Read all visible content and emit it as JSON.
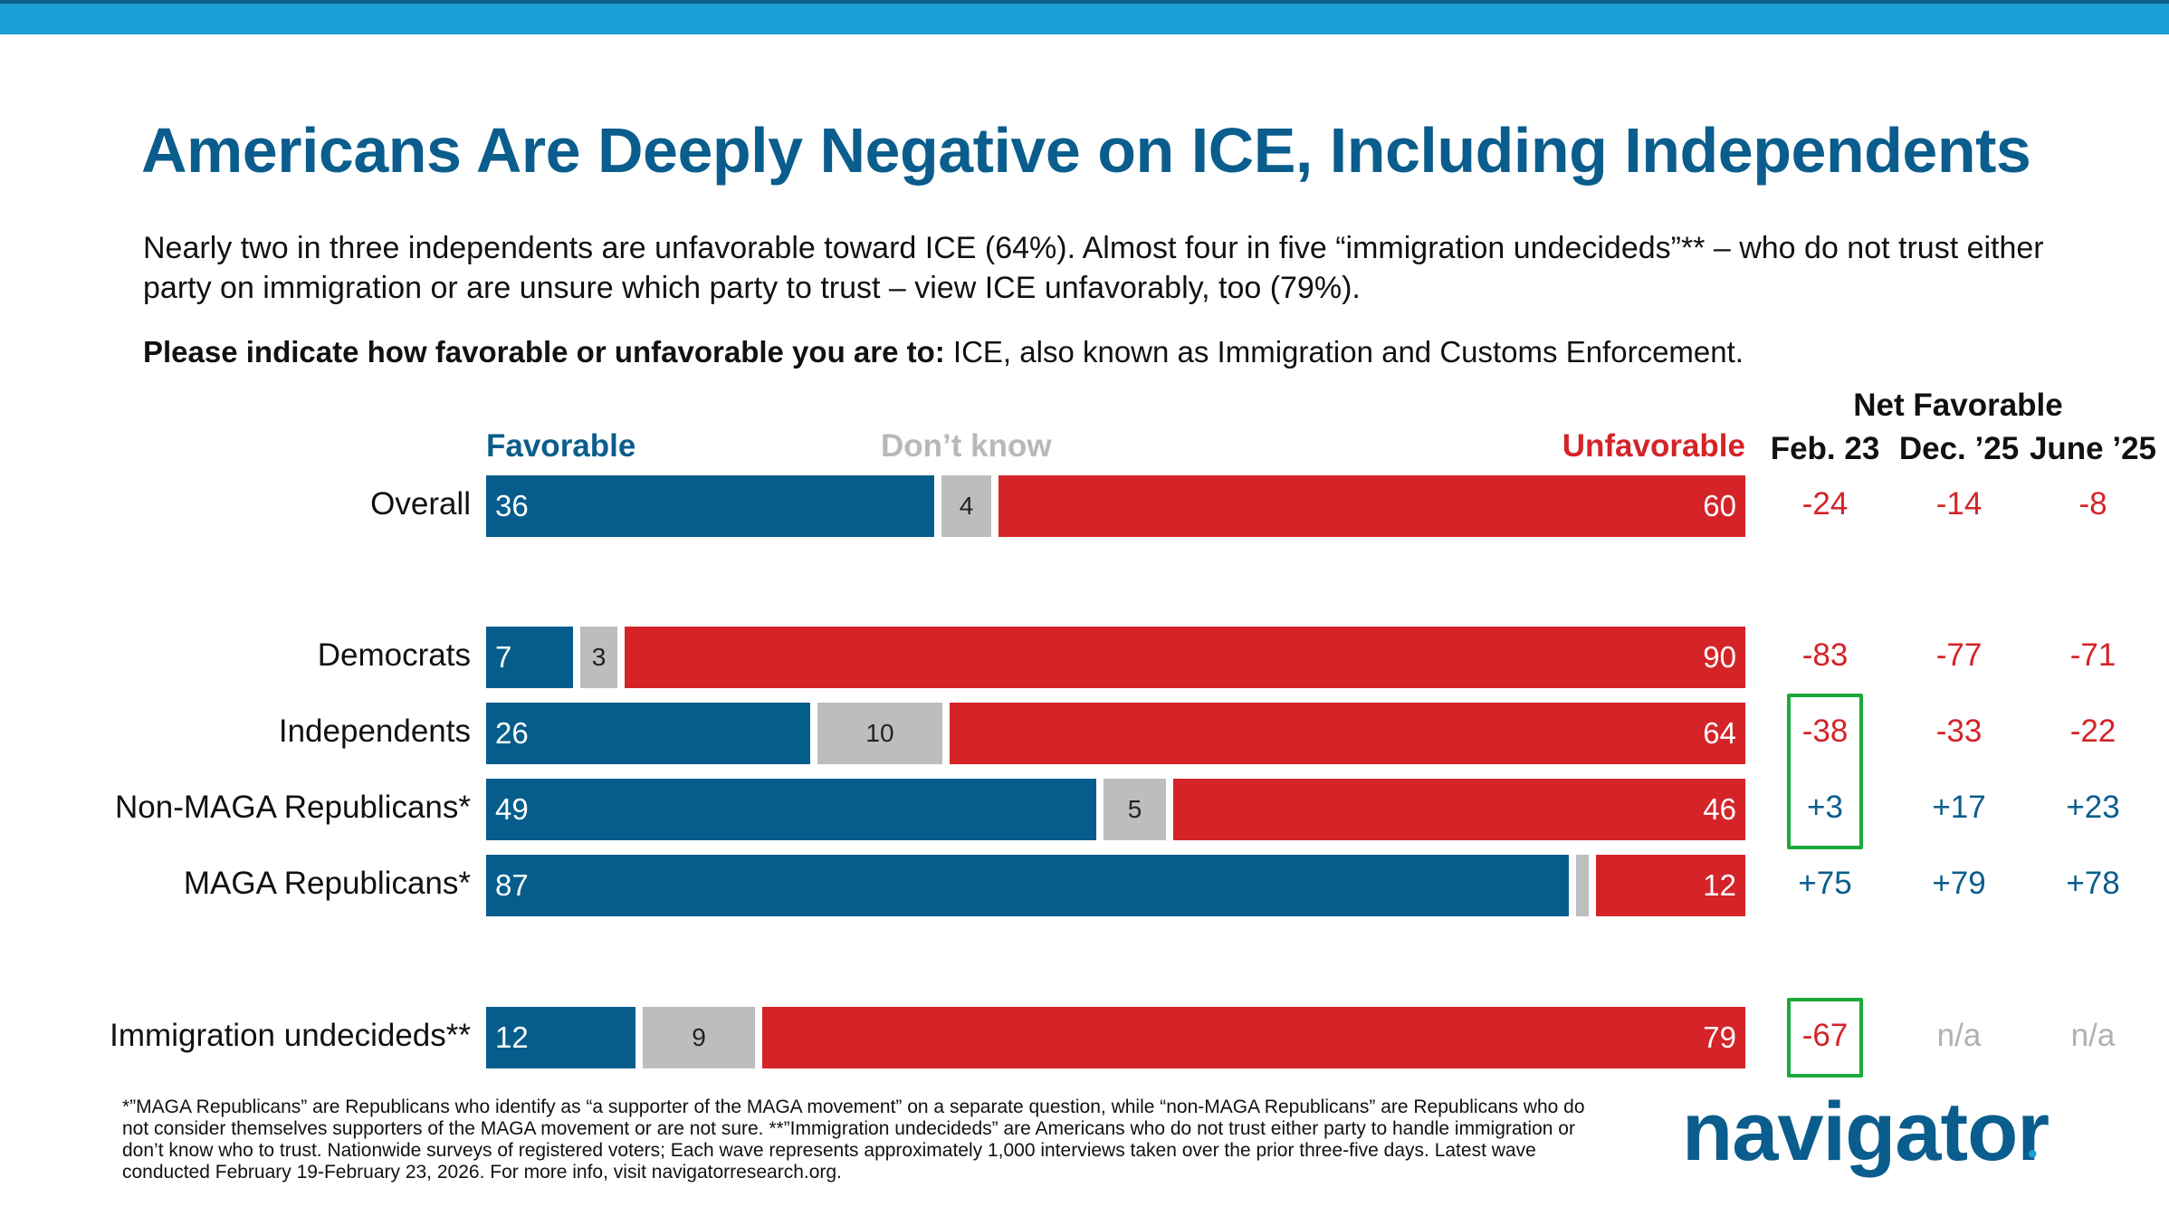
{
  "title": "Americans Are Deeply Negative on ICE, Including Independents",
  "subtitle": "Nearly two in three independents are unfavorable toward ICE (64%). Almost four in five “immigration undecideds”** – who do not trust either party on immigration or are unsure which party to trust – view ICE unfavorably, too (79%).",
  "question_bold": "Please indicate how favorable or unfavorable you are to:",
  "question_text": " ICE, also known as Immigration and Customs Enforcement.",
  "net_title": "Net Favorable",
  "footnote": "*”MAGA Republicans” are Republicans who identify as “a supporter of the MAGA movement” on a separate question, while “non-MAGA Republicans” are Republicans who do not consider themselves supporters of the MAGA movement or are not sure. **”Immigration undecideds” are Americans who do not trust either party to handle immigration or don’t know who to trust. Nationwide surveys of registered voters; Each wave represents approximately 1,000 interviews taken over the prior three-five days. Latest wave conducted February 19-February 23, 2026. For more info, visit navigatorresearch.org.",
  "logo": "navigator",
  "logo_dot": "•",
  "colors": {
    "favorable": "#065d8c",
    "dont_know": "#bdbdbd",
    "unfavorable": "#d42428",
    "highlight": "#1aaa3c",
    "accent": "#1a9ed4"
  },
  "chart_data": {
    "type": "bar",
    "orientation": "horizontal",
    "stacked": true,
    "title": "Americans Are Deeply Negative on ICE, Including Independents",
    "series_labels": {
      "favorable": "Favorable",
      "dont_know": "Don’t know",
      "unfavorable": "Unfavorable"
    },
    "net_columns": [
      "Feb. 23",
      "Dec. ’25",
      "June ’25"
    ],
    "rows": [
      {
        "label": "Overall",
        "favorable": 36,
        "dont_know": 4,
        "unfavorable": 60,
        "net": [
          "-24",
          "-14",
          "-8"
        ],
        "highlight": false
      },
      {
        "label": "Democrats",
        "favorable": 7,
        "dont_know": 3,
        "unfavorable": 90,
        "net": [
          "-83",
          "-77",
          "-71"
        ],
        "highlight": false
      },
      {
        "label": "Independents",
        "favorable": 26,
        "dont_know": 10,
        "unfavorable": 64,
        "net": [
          "-38",
          "-33",
          "-22"
        ],
        "highlight": true
      },
      {
        "label": "Non-MAGA Republicans*",
        "favorable": 49,
        "dont_know": 5,
        "unfavorable": 46,
        "net": [
          "+3",
          "+17",
          "+23"
        ],
        "highlight": true
      },
      {
        "label": "MAGA Republicans*",
        "favorable": 87,
        "dont_know": 1,
        "unfavorable": 12,
        "dont_know_label": "",
        "net": [
          "+75",
          "+79",
          "+78"
        ],
        "highlight": false
      },
      {
        "label": "Immigration undecideds**",
        "favorable": 12,
        "dont_know": 9,
        "unfavorable": 79,
        "net": [
          "-67",
          "n/a",
          "n/a"
        ],
        "highlight": true
      }
    ]
  }
}
